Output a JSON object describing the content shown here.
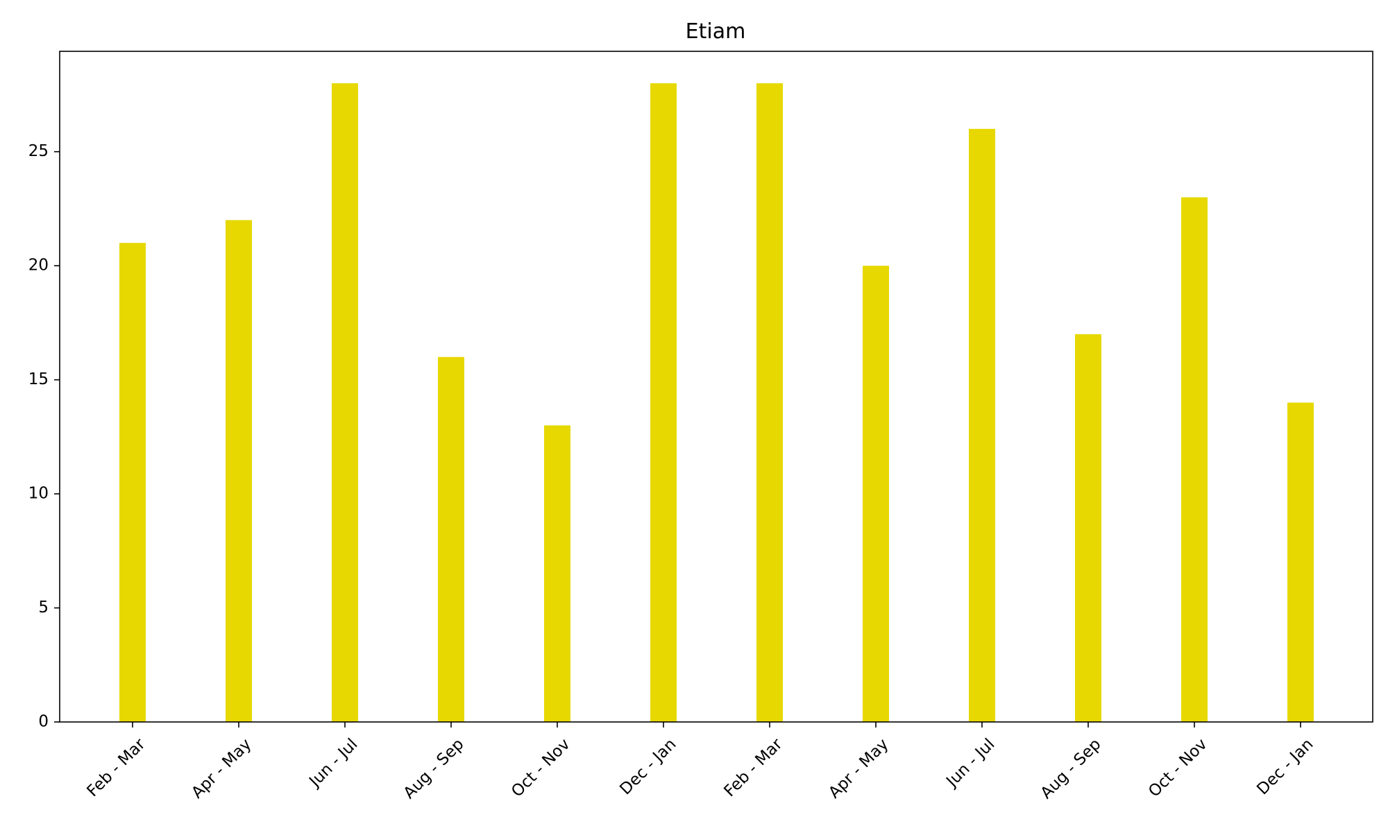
{
  "chart_data": {
    "type": "bar",
    "title": "Etiam",
    "xlabel": "",
    "ylabel": "",
    "categories": [
      "Feb - Mar",
      "Apr - May",
      "Jun - Jul",
      "Aug - Sep",
      "Oct - Nov",
      "Dec - Jan",
      "Feb - Mar",
      "Apr - May",
      "Jun - Jul",
      "Aug - Sep",
      "Oct - Nov",
      "Dec - Jan"
    ],
    "values": [
      21,
      22,
      28,
      16,
      13,
      28,
      28,
      20,
      26,
      17,
      23,
      14
    ],
    "ylim": [
      0,
      29.4
    ],
    "yticks": [
      0,
      5,
      10,
      15,
      20,
      25
    ],
    "grid": false,
    "legend": "none",
    "bar_color": "#e6d800",
    "axis_color": "#000000"
  }
}
